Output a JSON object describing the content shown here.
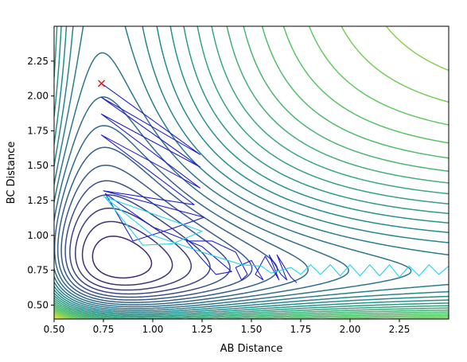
{
  "chart_data": {
    "type": "contour",
    "title": "",
    "xlabel": "AB Distance",
    "ylabel": "BC Distance",
    "xlim": [
      0.5,
      2.5
    ],
    "ylim": [
      0.4,
      2.5
    ],
    "x_ticks": [
      0.5,
      0.75,
      1.0,
      1.25,
      1.5,
      1.75,
      2.0,
      2.25
    ],
    "y_ticks": [
      0.5,
      0.75,
      1.0,
      1.25,
      1.5,
      1.75,
      2.0,
      2.25
    ],
    "x_tick_labels": [
      "0.50",
      "0.75",
      "1.00",
      "1.25",
      "1.50",
      "1.75",
      "2.00",
      "2.25"
    ],
    "y_tick_labels": [
      "0.50",
      "0.75",
      "1.00",
      "1.25",
      "1.50",
      "1.75",
      "2.00",
      "2.25"
    ],
    "grid": false,
    "colormap": [
      "#440154",
      "#3b528b",
      "#21918c",
      "#5ec962",
      "#fde725"
    ],
    "trajectories": [
      {
        "color": "#1f1fd0",
        "points": [
          [
            0.74,
            2.09
          ],
          [
            1.24,
            1.58
          ],
          [
            0.74,
            1.99
          ],
          [
            1.24,
            1.49
          ],
          [
            0.74,
            1.87
          ],
          [
            1.24,
            1.34
          ],
          [
            0.74,
            1.72
          ],
          [
            1.21,
            1.22
          ],
          [
            0.75,
            1.32
          ],
          [
            1.26,
            1.13
          ],
          [
            1.1,
            1.05
          ],
          [
            0.9,
            0.96
          ],
          [
            0.76,
            1.3
          ],
          [
            1.0,
            1.06
          ],
          [
            1.25,
            0.92
          ],
          [
            1.4,
            0.74
          ],
          [
            1.32,
            0.72
          ],
          [
            1.25,
            0.83
          ],
          [
            1.17,
            0.96
          ],
          [
            1.3,
            0.96
          ],
          [
            1.42,
            0.88
          ],
          [
            1.48,
            0.72
          ],
          [
            1.45,
            0.68
          ],
          [
            1.42,
            0.77
          ],
          [
            1.5,
            0.82
          ],
          [
            1.56,
            0.68
          ],
          [
            1.52,
            0.72
          ],
          [
            1.57,
            0.85
          ],
          [
            1.64,
            0.68
          ],
          [
            1.59,
            0.86
          ],
          [
            1.65,
            0.72
          ],
          [
            1.68,
            0.68
          ],
          [
            1.63,
            0.86
          ],
          [
            1.7,
            0.7
          ],
          [
            1.73,
            0.66
          ]
        ]
      },
      {
        "color": "#22d3ee",
        "points": [
          [
            0.75,
            1.28
          ],
          [
            1.25,
            1.03
          ],
          [
            1.1,
            0.94
          ],
          [
            0.95,
            0.93
          ],
          [
            0.76,
            1.27
          ],
          [
            1.0,
            1.0
          ],
          [
            1.25,
            0.88
          ],
          [
            1.45,
            0.79
          ],
          [
            1.55,
            0.78
          ],
          [
            1.6,
            0.73
          ],
          [
            1.7,
            0.77
          ],
          [
            1.75,
            0.72
          ],
          [
            1.8,
            0.79
          ],
          [
            1.85,
            0.72
          ],
          [
            1.9,
            0.79
          ],
          [
            1.95,
            0.71
          ],
          [
            2.0,
            0.79
          ],
          [
            2.05,
            0.71
          ],
          [
            2.1,
            0.79
          ],
          [
            2.15,
            0.71
          ],
          [
            2.2,
            0.79
          ],
          [
            2.25,
            0.7
          ],
          [
            2.3,
            0.78
          ],
          [
            2.35,
            0.71
          ],
          [
            2.4,
            0.79
          ],
          [
            2.45,
            0.72
          ],
          [
            2.5,
            0.78
          ]
        ]
      }
    ],
    "start_marker": {
      "x": 0.74,
      "y": 2.09,
      "symbol": "x",
      "color": "#e31a1c"
    }
  }
}
